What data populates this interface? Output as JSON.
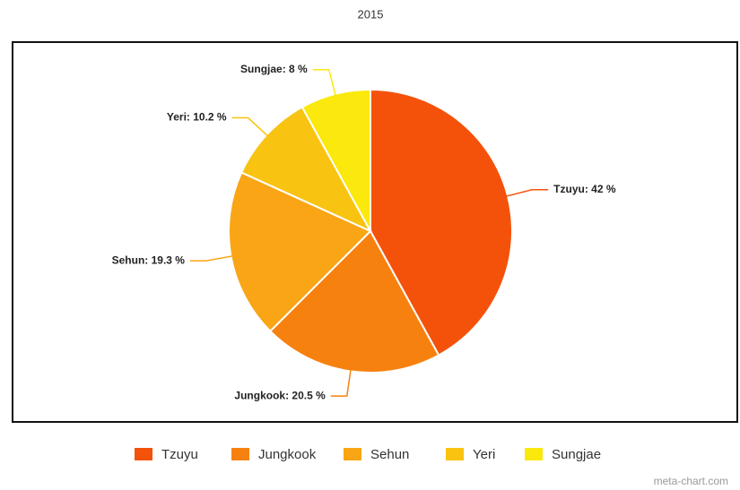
{
  "chart_data": {
    "type": "pie",
    "title": "2015",
    "categories": [
      "Tzuyu",
      "Jungkook",
      "Sehun",
      "Yeri",
      "Sungjae"
    ],
    "values": [
      42,
      20.5,
      19.3,
      10.2,
      8
    ],
    "value_labels": [
      "Tzuyu: 42 %",
      "Jungkook: 20.5 %",
      "Sehun: 19.3 %",
      "Yeri: 10.2 %",
      "Sungjae: 8 %"
    ],
    "colors": [
      "#f4520b",
      "#f7810f",
      "#f9a515",
      "#f9c312",
      "#fbe80c"
    ],
    "legend": "bottom",
    "watermark": "meta-chart.com"
  }
}
